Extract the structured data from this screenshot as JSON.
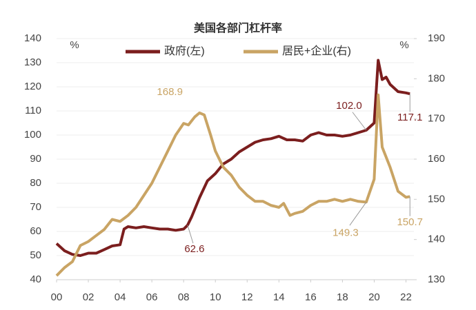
{
  "chart_data": {
    "type": "line",
    "title": "美国各部门杠杆率",
    "y_unit": "%",
    "y2_unit": "%",
    "xlim": [
      2000,
      2022.5
    ],
    "xticks": [
      {
        "value": 2000,
        "label": "00"
      },
      {
        "value": 2002,
        "label": "02"
      },
      {
        "value": 2004,
        "label": "04"
      },
      {
        "value": 2006,
        "label": "06"
      },
      {
        "value": 2008,
        "label": "08"
      },
      {
        "value": 2010,
        "label": "10"
      },
      {
        "value": 2012,
        "label": "12"
      },
      {
        "value": 2014,
        "label": "14"
      },
      {
        "value": 2016,
        "label": "16"
      },
      {
        "value": 2018,
        "label": "18"
      },
      {
        "value": 2020,
        "label": "20"
      },
      {
        "value": 2022,
        "label": "22"
      }
    ],
    "ylim": [
      40,
      140
    ],
    "yticks": [
      40,
      50,
      60,
      70,
      80,
      90,
      100,
      110,
      120,
      130,
      140
    ],
    "y2lim": [
      130,
      190
    ],
    "y2ticks": [
      130,
      140,
      150,
      160,
      170,
      180,
      190
    ],
    "series": [
      {
        "name": "政府(左)",
        "color": "#7b1e1e",
        "axis": "y",
        "x": [
          2000,
          2000.5,
          2001,
          2001.5,
          2002,
          2002.5,
          2003,
          2003.5,
          2004,
          2004.25,
          2004.5,
          2005,
          2005.5,
          2006,
          2006.5,
          2007,
          2007.5,
          2008,
          2008.25,
          2008.5,
          2009,
          2009.5,
          2010,
          2010.5,
          2011,
          2011.5,
          2012,
          2012.5,
          2013,
          2013.5,
          2014,
          2014.5,
          2015,
          2015.5,
          2016,
          2016.5,
          2017,
          2017.5,
          2018,
          2018.5,
          2019,
          2019.5,
          2020,
          2020.25,
          2020.5,
          2020.75,
          2021,
          2021.5,
          2022,
          2022.25
        ],
        "values": [
          55,
          52,
          50.5,
          50,
          51,
          51,
          52.5,
          54,
          54.5,
          61,
          62,
          61.5,
          62,
          61.5,
          61,
          61,
          60.5,
          61,
          62.6,
          66,
          74,
          81,
          84,
          88,
          90,
          93,
          95,
          97,
          98,
          98.5,
          99.5,
          98,
          98,
          97.5,
          100,
          101,
          100,
          100,
          99.5,
          100,
          101,
          102.0,
          105,
          131,
          123,
          124,
          121,
          118,
          117.5,
          117.1
        ]
      },
      {
        "name": "居民+企业(右)",
        "color": "#c9a464",
        "axis": "y2",
        "x": [
          2000,
          2000.5,
          2001,
          2001.5,
          2002,
          2002.5,
          2003,
          2003.5,
          2004,
          2004.5,
          2005,
          2005.5,
          2006,
          2006.5,
          2007,
          2007.5,
          2008,
          2008.3,
          2008.7,
          2009,
          2009.3,
          2009.7,
          2010,
          2010.5,
          2011,
          2011.5,
          2012,
          2012.5,
          2013,
          2013.5,
          2014,
          2014.3,
          2014.7,
          2015,
          2015.5,
          2016,
          2016.5,
          2017,
          2017.5,
          2018,
          2018.5,
          2019,
          2019.5,
          2020,
          2020.25,
          2020.5,
          2021,
          2021.5,
          2022,
          2022.25
        ],
        "values": [
          131,
          133,
          134.5,
          138.5,
          139.5,
          141,
          142.5,
          145,
          144.5,
          146,
          148,
          151,
          154,
          158,
          162,
          166,
          168.9,
          168.5,
          170.5,
          171.5,
          171,
          166,
          162,
          158,
          156,
          153,
          151,
          149.5,
          149.5,
          148.5,
          148,
          149,
          146,
          146.5,
          147,
          148.5,
          149.5,
          149.5,
          150,
          149.5,
          150,
          149.5,
          149.3,
          155,
          176,
          163,
          158,
          152,
          150.5,
          150.7
        ]
      }
    ],
    "annotations": [
      {
        "label": "168.9",
        "x": 2008,
        "value": 168.9,
        "axis": "y2"
      },
      {
        "label": "62.6",
        "x": 2008.25,
        "value": 62.6,
        "axis": "y"
      },
      {
        "label": "102.0",
        "x": 2019.5,
        "value": 102.0,
        "axis": "y"
      },
      {
        "label": "117.1",
        "x": 2022.25,
        "value": 117.1,
        "axis": "y"
      },
      {
        "label": "149.3",
        "x": 2019.5,
        "value": 149.3,
        "axis": "y2"
      },
      {
        "label": "150.7",
        "x": 2022.25,
        "value": 150.7,
        "axis": "y2"
      }
    ]
  }
}
